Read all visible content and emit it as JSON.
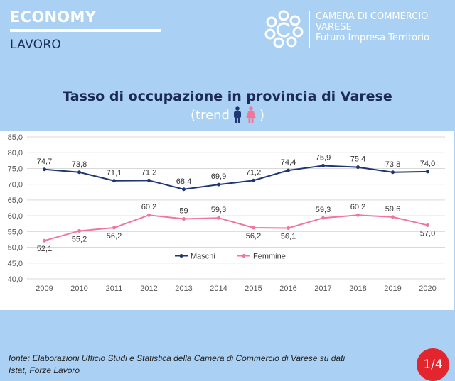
{
  "header": {
    "section": "ECONOMY",
    "subsection": "LAVORO"
  },
  "brand": {
    "line1": "CAMERA DI COMMERCIO",
    "line2": "VARESE",
    "line3": "Futuro Impresa Territorio"
  },
  "chart_title": "Tasso di occupazione in provincia di Varese",
  "chart_subtitle_open": "(trend",
  "chart_subtitle_close": ")",
  "icons": {
    "male": "male-figure-icon",
    "female": "female-figure-icon"
  },
  "colors": {
    "background": "#aad0f4",
    "maschi": "#1f3770",
    "femmine": "#f0769b",
    "badge": "#e3262e",
    "title": "#1b2a57"
  },
  "chart_data": {
    "type": "line",
    "title": "Tasso di occupazione in provincia di Varese",
    "categories": [
      "2009",
      "2010",
      "2011",
      "2012",
      "2013",
      "2014",
      "2015",
      "2016",
      "2017",
      "2018",
      "2019",
      "2020"
    ],
    "series": [
      {
        "name": "Maschi",
        "values": [
          74.7,
          73.8,
          71.1,
          71.2,
          68.4,
          69.9,
          71.2,
          74.4,
          75.9,
          75.4,
          73.8,
          74.0
        ],
        "labels": [
          "74,7",
          "73,8",
          "71,1",
          "71,2",
          "68,4",
          "69,9",
          "71,2",
          "74,4",
          "75,9",
          "75,4",
          "73,8",
          "74,0"
        ]
      },
      {
        "name": "Femmine",
        "values": [
          52.1,
          55.2,
          56.2,
          60.2,
          59.0,
          59.3,
          56.2,
          56.1,
          59.3,
          60.2,
          59.6,
          57.0
        ],
        "labels": [
          "52,1",
          "55,2",
          "56,2",
          "60,2",
          "59",
          "59,3",
          "56,2",
          "56,1",
          "59,3",
          "60,2",
          "59,6",
          "57,0"
        ]
      }
    ],
    "ylim": [
      40,
      85
    ],
    "yticks": [
      "40,0",
      "45,0",
      "50,0",
      "55,0",
      "60,0",
      "65,0",
      "70,0",
      "75,0",
      "80,0",
      "85,0"
    ],
    "grid": true,
    "legend": "bottom-center"
  },
  "footer": {
    "source_line1": "fonte: Elaborazioni Ufficio Studi e Statistica della Camera di Commercio di Varese su dati",
    "source_line2": "Istat, Forze Lavoro",
    "page": "1/4"
  }
}
